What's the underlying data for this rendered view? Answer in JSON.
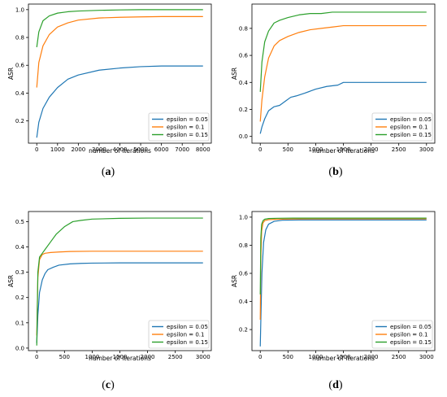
{
  "colors": {
    "eps005": "#1f77b4",
    "eps01": "#ff7f0e",
    "eps015": "#2ca02c"
  },
  "chart_data": [
    {
      "type": "line",
      "caption_letter": "a",
      "xlabel": "number of iterations",
      "ylabel": "ASR",
      "xlim": [
        -400,
        8400
      ],
      "ylim": [
        0.04,
        1.04
      ],
      "xticks": [
        0,
        1000,
        2000,
        3000,
        4000,
        5000,
        6000,
        7000,
        8000
      ],
      "yticks": [
        0.2,
        0.4,
        0.6,
        0.8,
        1.0
      ],
      "ytick_labels": [
        "0.2",
        "0.4",
        "0.6",
        "0.8",
        "1.0"
      ],
      "grid": false,
      "legend_position": "lower-right",
      "series": [
        {
          "name": "epsilon = 0.05",
          "x": [
            0,
            100,
            300,
            600,
            1000,
            1500,
            2000,
            3000,
            4000,
            5000,
            6000,
            7000,
            8000
          ],
          "y": [
            0.08,
            0.19,
            0.29,
            0.37,
            0.44,
            0.5,
            0.53,
            0.565,
            0.58,
            0.59,
            0.595,
            0.595,
            0.595
          ]
        },
        {
          "name": "epsilon = 0.1",
          "x": [
            0,
            100,
            300,
            600,
            1000,
            1500,
            2000,
            3000,
            4000,
            5000,
            6000,
            7000,
            8000
          ],
          "y": [
            0.44,
            0.62,
            0.74,
            0.82,
            0.875,
            0.905,
            0.925,
            0.94,
            0.945,
            0.948,
            0.95,
            0.95,
            0.95
          ]
        },
        {
          "name": "epsilon = 0.15",
          "x": [
            0,
            100,
            300,
            600,
            1000,
            1500,
            2000,
            3000,
            4000,
            5000,
            6000,
            7000,
            8000
          ],
          "y": [
            0.73,
            0.84,
            0.92,
            0.955,
            0.975,
            0.985,
            0.99,
            0.995,
            0.998,
            1.0,
            1.0,
            1.0,
            1.0
          ]
        }
      ]
    },
    {
      "type": "line",
      "caption_letter": "b",
      "xlabel": "number of iterations",
      "ylabel": "ASR",
      "xlim": [
        -150,
        3150
      ],
      "ylim": [
        -0.05,
        0.98
      ],
      "xticks": [
        0,
        500,
        1000,
        1500,
        2000,
        2500,
        3000
      ],
      "yticks": [
        0.0,
        0.2,
        0.4,
        0.6,
        0.8
      ],
      "ytick_labels": [
        "0.0",
        "0.2",
        "0.4",
        "0.6",
        "0.8"
      ],
      "grid": false,
      "legend_position": "lower-right",
      "series": [
        {
          "name": "epsilon = 0.05",
          "x": [
            0,
            30,
            80,
            150,
            250,
            350,
            450,
            550,
            650,
            800,
            1000,
            1200,
            1400,
            1500,
            2000,
            2500,
            3000
          ],
          "y": [
            0.02,
            0.07,
            0.13,
            0.19,
            0.22,
            0.23,
            0.26,
            0.29,
            0.3,
            0.32,
            0.35,
            0.37,
            0.38,
            0.4,
            0.4,
            0.4,
            0.4
          ]
        },
        {
          "name": "epsilon = 0.1",
          "x": [
            0,
            30,
            80,
            150,
            250,
            350,
            500,
            700,
            900,
            1100,
            1300,
            1500,
            2000,
            2500,
            3000
          ],
          "y": [
            0.11,
            0.27,
            0.44,
            0.58,
            0.67,
            0.71,
            0.74,
            0.77,
            0.79,
            0.8,
            0.81,
            0.82,
            0.82,
            0.82,
            0.82
          ]
        },
        {
          "name": "epsilon = 0.15",
          "x": [
            0,
            30,
            80,
            150,
            250,
            350,
            500,
            700,
            900,
            1100,
            1300,
            1500,
            2000,
            2500,
            3000
          ],
          "y": [
            0.33,
            0.55,
            0.7,
            0.78,
            0.84,
            0.86,
            0.88,
            0.9,
            0.91,
            0.91,
            0.92,
            0.92,
            0.92,
            0.92,
            0.92
          ]
        }
      ]
    },
    {
      "type": "line",
      "caption_letter": "c",
      "xlabel": "number of iterations",
      "ylabel": "ASR",
      "xlim": [
        -150,
        3150
      ],
      "ylim": [
        -0.01,
        0.54
      ],
      "xticks": [
        0,
        500,
        1000,
        1500,
        2000,
        2500,
        3000
      ],
      "yticks": [
        0.0,
        0.1,
        0.2,
        0.3,
        0.4,
        0.5
      ],
      "ytick_labels": [
        "0.0",
        "0.1",
        "0.2",
        "0.3",
        "0.4",
        "0.5"
      ],
      "grid": false,
      "legend_position": "lower-right",
      "series": [
        {
          "name": "epsilon = 0.05",
          "x": [
            0,
            20,
            50,
            100,
            150,
            200,
            300,
            400,
            600,
            800,
            1000,
            1500,
            2000,
            2500,
            3000
          ],
          "y": [
            0.02,
            0.13,
            0.22,
            0.27,
            0.295,
            0.31,
            0.32,
            0.328,
            0.333,
            0.335,
            0.336,
            0.337,
            0.337,
            0.337,
            0.337
          ]
        },
        {
          "name": "epsilon = 0.1",
          "x": [
            0,
            20,
            50,
            100,
            150,
            250,
            400,
            600,
            1000,
            1500,
            2000,
            2500,
            3000
          ],
          "y": [
            0.05,
            0.28,
            0.35,
            0.37,
            0.375,
            0.378,
            0.38,
            0.382,
            0.383,
            0.383,
            0.383,
            0.383,
            0.383
          ]
        },
        {
          "name": "epsilon = 0.15",
          "x": [
            0,
            20,
            50,
            100,
            150,
            250,
            350,
            500,
            650,
            800,
            1000,
            1500,
            2000,
            2500,
            3000
          ],
          "y": [
            0.01,
            0.3,
            0.36,
            0.375,
            0.39,
            0.42,
            0.45,
            0.48,
            0.5,
            0.505,
            0.51,
            0.513,
            0.514,
            0.514,
            0.514
          ]
        }
      ]
    },
    {
      "type": "line",
      "caption_letter": "d",
      "xlabel": "number of iterations",
      "ylabel": "ASR",
      "xlim": [
        -150,
        3150
      ],
      "ylim": [
        0.05,
        1.04
      ],
      "xticks": [
        0,
        500,
        1000,
        1500,
        2000,
        2500,
        3000
      ],
      "yticks": [
        0.2,
        0.4,
        0.6,
        0.8,
        1.0
      ],
      "ytick_labels": [
        "0.2",
        "0.4",
        "0.6",
        "0.8",
        "1.0"
      ],
      "grid": false,
      "legend_position": "lower-right",
      "series": [
        {
          "name": "epsilon = 0.05",
          "x": [
            0,
            15,
            30,
            60,
            100,
            150,
            250,
            400,
            700,
            1000,
            2000,
            3000
          ],
          "y": [
            0.08,
            0.35,
            0.6,
            0.82,
            0.91,
            0.95,
            0.97,
            0.978,
            0.98,
            0.98,
            0.98,
            0.98
          ]
        },
        {
          "name": "epsilon = 0.1",
          "x": [
            0,
            10,
            25,
            50,
            80,
            150,
            300,
            600,
            1000,
            2000,
            3000
          ],
          "y": [
            0.27,
            0.7,
            0.9,
            0.96,
            0.975,
            0.982,
            0.985,
            0.987,
            0.988,
            0.988,
            0.988
          ]
        },
        {
          "name": "epsilon = 0.15",
          "x": [
            0,
            10,
            25,
            50,
            80,
            150,
            300,
            600,
            1000,
            2000,
            3000
          ],
          "y": [
            0.45,
            0.85,
            0.95,
            0.975,
            0.985,
            0.99,
            0.992,
            0.993,
            0.993,
            0.993,
            0.993
          ]
        }
      ]
    }
  ]
}
